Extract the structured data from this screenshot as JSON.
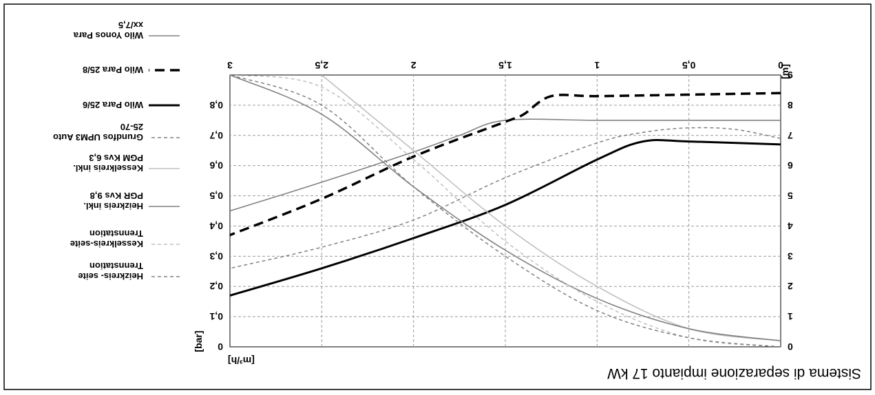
{
  "chart_data": {
    "type": "line",
    "title": "Sistema di separazione impianto 17 kW",
    "xlabel": "[m³/h]",
    "ylabel": "[m]",
    "y2label": "[bar]",
    "xlim": [
      0,
      3
    ],
    "ylim": [
      0,
      9
    ],
    "y2lim": [
      0,
      0.9
    ],
    "x_ticks": [
      "0",
      "0,5",
      "1",
      "1,5",
      "2",
      "2,5",
      "3"
    ],
    "y_ticks": [
      "0",
      "1",
      "2",
      "3",
      "4",
      "5",
      "6",
      "7",
      "8",
      "9"
    ],
    "y2_ticks": [
      "0",
      "0,1",
      "0,2",
      "0,3",
      "0,4",
      "0,5",
      "0,6",
      "0,7",
      "0,8"
    ],
    "grid": true,
    "legend_position": "right",
    "series": [
      {
        "name": "Wilo Yonos Para xx/7,5",
        "color": "#808080",
        "dash": "solid",
        "x": [
          0,
          0.5,
          1,
          1.5,
          1.75,
          2,
          2.5,
          3
        ],
        "y": [
          7.5,
          7.5,
          7.5,
          7.5,
          7.0,
          6.45,
          5.45,
          4.5
        ]
      },
      {
        "name": "Wilo Para 25/8",
        "color": "#000000",
        "dash": "thick-dashed",
        "x": [
          0,
          0.5,
          1,
          1.25,
          1.4,
          1.5,
          2,
          2.5,
          3
        ],
        "y": [
          8.4,
          8.35,
          8.3,
          8.3,
          7.7,
          7.45,
          6.3,
          4.9,
          3.7
        ]
      },
      {
        "name": "Wilo Para 25/6",
        "color": "#000000",
        "dash": "solid-thick",
        "x": [
          0,
          0.5,
          0.75,
          1,
          1.5,
          2,
          2.5,
          3
        ],
        "y": [
          6.7,
          6.8,
          6.8,
          6.2,
          4.7,
          3.6,
          2.6,
          1.7
        ]
      },
      {
        "name": "Grundfos UPM3 Auto 25-70",
        "color": "#808080",
        "dash": "dashed",
        "x": [
          0,
          0.25,
          0.5,
          0.75,
          1,
          1.5,
          2,
          2.5,
          3
        ],
        "y": [
          6.9,
          7.2,
          7.25,
          7.1,
          6.75,
          5.6,
          4.2,
          3.3,
          2.6
        ]
      },
      {
        "name": "Kesselkreis inkl. PGM Kvs 6,3",
        "color": "#bfbfbf",
        "dash": "solid",
        "x": [
          0,
          0.5,
          1,
          1.5,
          2,
          2.5
        ],
        "y": [
          0.2,
          0.6,
          2.0,
          4.0,
          6.5,
          9.0
        ]
      },
      {
        "name": "Heizkreis inkl. PGR Kvs 9,8",
        "color": "#808080",
        "dash": "solid",
        "x": [
          0,
          0.5,
          1,
          1.5,
          2,
          2.5,
          3
        ],
        "y": [
          0.2,
          0.6,
          1.6,
          3.2,
          5.3,
          7.7,
          9.0
        ]
      },
      {
        "name": "Kesselkreis-seite Trennstation",
        "color": "#bfbfbf",
        "dash": "dashed",
        "x": [
          0,
          0.5,
          1,
          1.5,
          2,
          2.5,
          3
        ],
        "y": [
          0.0,
          0.3,
          1.5,
          3.5,
          6.2,
          8.6,
          9.0
        ]
      },
      {
        "name": "Heizkreis- seite Trennstation",
        "color": "#808080",
        "dash": "dashed",
        "x": [
          0,
          0.5,
          1,
          1.5,
          2,
          2.5,
          3
        ],
        "y": [
          0.0,
          0.3,
          1.2,
          3.0,
          5.3,
          8.0,
          9.0
        ]
      }
    ]
  }
}
